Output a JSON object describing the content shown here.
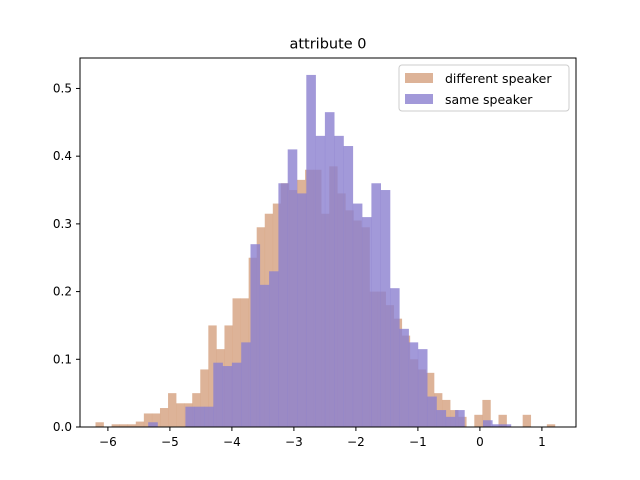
{
  "chart_data": {
    "type": "histogram",
    "title": "attribute 0",
    "xlabel": "",
    "ylabel": "",
    "xlim": [
      -6.45,
      1.55
    ],
    "ylim": [
      0,
      0.545
    ],
    "xticks": [
      -6,
      -5,
      -4,
      -3,
      -2,
      -1,
      0,
      1
    ],
    "xtick_labels": [
      "−6",
      "−5",
      "−4",
      "−3",
      "−2",
      "−1",
      "0",
      "1"
    ],
    "yticks": [
      0.0,
      0.1,
      0.2,
      0.3,
      0.4,
      0.5
    ],
    "ytick_labels": [
      "0.0",
      "0.1",
      "0.2",
      "0.3",
      "0.4",
      "0.5"
    ],
    "grid": false,
    "legend_position": "top-right",
    "series": [
      {
        "name": "different speaker",
        "color": "#d5a07e",
        "bins": [
          [
            -6.2,
            -6.07,
            0.007
          ],
          [
            -6.07,
            -5.94,
            0.0
          ],
          [
            -5.94,
            -5.81,
            0.004
          ],
          [
            -5.81,
            -5.68,
            0.004
          ],
          [
            -5.68,
            -5.55,
            0.004
          ],
          [
            -5.55,
            -5.42,
            0.008
          ],
          [
            -5.42,
            -5.29,
            0.02
          ],
          [
            -5.29,
            -5.16,
            0.02
          ],
          [
            -5.16,
            -5.03,
            0.028
          ],
          [
            -5.03,
            -4.9,
            0.05
          ],
          [
            -4.9,
            -4.77,
            0.035
          ],
          [
            -4.77,
            -4.64,
            0.035
          ],
          [
            -4.64,
            -4.51,
            0.05
          ],
          [
            -4.51,
            -4.38,
            0.085
          ],
          [
            -4.38,
            -4.25,
            0.15
          ],
          [
            -4.25,
            -4.12,
            0.115
          ],
          [
            -4.12,
            -3.99,
            0.15
          ],
          [
            -3.99,
            -3.86,
            0.19
          ],
          [
            -3.86,
            -3.73,
            0.19
          ],
          [
            -3.73,
            -3.6,
            0.25
          ],
          [
            -3.6,
            -3.47,
            0.295
          ],
          [
            -3.47,
            -3.34,
            0.315
          ],
          [
            -3.34,
            -3.21,
            0.33
          ],
          [
            -3.21,
            -3.08,
            0.36
          ],
          [
            -3.08,
            -2.95,
            0.35
          ],
          [
            -2.95,
            -2.82,
            0.365
          ],
          [
            -2.82,
            -2.69,
            0.38
          ],
          [
            -2.69,
            -2.56,
            0.38
          ],
          [
            -2.56,
            -2.43,
            0.315
          ],
          [
            -2.43,
            -2.3,
            0.385
          ],
          [
            -2.3,
            -2.17,
            0.345
          ],
          [
            -2.17,
            -2.04,
            0.32
          ],
          [
            -2.04,
            -1.91,
            0.305
          ],
          [
            -1.91,
            -1.78,
            0.295
          ],
          [
            -1.78,
            -1.65,
            0.2
          ],
          [
            -1.65,
            -1.52,
            0.2
          ],
          [
            -1.52,
            -1.39,
            0.18
          ],
          [
            -1.39,
            -1.26,
            0.16
          ],
          [
            -1.26,
            -1.13,
            0.135
          ],
          [
            -1.13,
            -1.0,
            0.1
          ],
          [
            -1.0,
            -0.87,
            0.085
          ],
          [
            -0.87,
            -0.74,
            0.08
          ],
          [
            -0.74,
            -0.61,
            0.05
          ],
          [
            -0.61,
            -0.48,
            0.04
          ],
          [
            -0.48,
            -0.35,
            0.025
          ],
          [
            -0.35,
            -0.22,
            0.015
          ],
          [
            -0.22,
            -0.09,
            0.0
          ],
          [
            -0.09,
            0.04,
            0.018
          ],
          [
            0.04,
            0.17,
            0.04
          ],
          [
            0.17,
            0.3,
            0.0
          ],
          [
            0.3,
            0.43,
            0.018
          ],
          [
            0.43,
            0.56,
            0.0
          ],
          [
            0.56,
            0.69,
            0.0
          ],
          [
            0.69,
            0.82,
            0.018
          ],
          [
            0.82,
            0.95,
            0.0
          ],
          [
            0.95,
            1.08,
            0.0
          ],
          [
            1.08,
            1.21,
            0.004
          ]
        ]
      },
      {
        "name": "same speaker",
        "color": "#8b7fd0",
        "bins": [
          [
            -5.35,
            -5.2,
            0.007
          ],
          [
            -5.2,
            -5.05,
            0.0
          ],
          [
            -5.05,
            -4.9,
            0.0
          ],
          [
            -4.9,
            -4.75,
            0.0
          ],
          [
            -4.75,
            -4.6,
            0.03
          ],
          [
            -4.6,
            -4.45,
            0.03
          ],
          [
            -4.45,
            -4.3,
            0.03
          ],
          [
            -4.3,
            -4.15,
            0.095
          ],
          [
            -4.15,
            -4.0,
            0.09
          ],
          [
            -4.0,
            -3.85,
            0.095
          ],
          [
            -3.85,
            -3.7,
            0.125
          ],
          [
            -3.7,
            -3.55,
            0.27
          ],
          [
            -3.55,
            -3.4,
            0.21
          ],
          [
            -3.4,
            -3.25,
            0.23
          ],
          [
            -3.25,
            -3.1,
            0.36
          ],
          [
            -3.1,
            -2.95,
            0.41
          ],
          [
            -2.95,
            -2.8,
            0.345
          ],
          [
            -2.8,
            -2.65,
            0.52
          ],
          [
            -2.65,
            -2.5,
            0.43
          ],
          [
            -2.5,
            -2.35,
            0.465
          ],
          [
            -2.35,
            -2.2,
            0.43
          ],
          [
            -2.2,
            -2.05,
            0.415
          ],
          [
            -2.05,
            -1.9,
            0.33
          ],
          [
            -1.9,
            -1.75,
            0.31
          ],
          [
            -1.75,
            -1.6,
            0.36
          ],
          [
            -1.6,
            -1.45,
            0.35
          ],
          [
            -1.45,
            -1.3,
            0.205
          ],
          [
            -1.3,
            -1.15,
            0.145
          ],
          [
            -1.15,
            -1.0,
            0.125
          ],
          [
            -1.0,
            -0.85,
            0.115
          ],
          [
            -0.85,
            -0.7,
            0.045
          ],
          [
            -0.7,
            -0.55,
            0.025
          ],
          [
            -0.55,
            -0.4,
            0.015
          ],
          [
            -0.4,
            -0.25,
            0.025
          ],
          [
            -0.25,
            -0.1,
            0.0
          ],
          [
            -0.1,
            0.05,
            0.0
          ],
          [
            0.05,
            0.2,
            0.01
          ],
          [
            0.2,
            0.35,
            0.004
          ],
          [
            0.35,
            0.5,
            0.004
          ]
        ]
      }
    ]
  }
}
